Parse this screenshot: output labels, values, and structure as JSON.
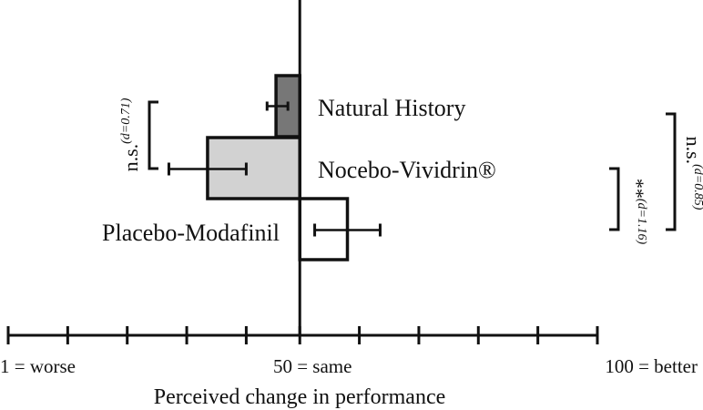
{
  "chart_data": {
    "type": "bar",
    "orientation": "horizontal",
    "xlabel": "Perceived change in performance",
    "xlim": [
      1,
      100
    ],
    "baseline": 50,
    "ticks": [
      1,
      11,
      21,
      31,
      41,
      50,
      60,
      70,
      80,
      90,
      100
    ],
    "tick_labels": [
      {
        "value": 1,
        "text": "1 = worse"
      },
      {
        "value": 50,
        "text": "50 = same"
      },
      {
        "value": 100,
        "text": "100 = better"
      }
    ],
    "categories": [
      "Natural History",
      "Nocebo-Vividrin®",
      "Placebo-Modafinil"
    ],
    "values": [
      46,
      34.5,
      58
    ],
    "error_low": [
      44.5,
      28,
      52.5
    ],
    "error_high": [
      48,
      41,
      63.5
    ],
    "colors": [
      "#777777",
      "#d2d2d2",
      "#ffffff"
    ],
    "annotations": [
      {
        "text": "n.s.",
        "superscript": "(d=0.71)",
        "pair": [
          "Natural History",
          "Nocebo-Vividrin®"
        ]
      },
      {
        "text": "**",
        "superscript": "(d=1.16)",
        "pair": [
          "Nocebo-Vividrin®",
          "Placebo-Modafinil"
        ]
      },
      {
        "text": "n.s.",
        "superscript": "(d=0.85)",
        "pair": [
          "Natural History",
          "Placebo-Modafinil"
        ]
      }
    ]
  }
}
